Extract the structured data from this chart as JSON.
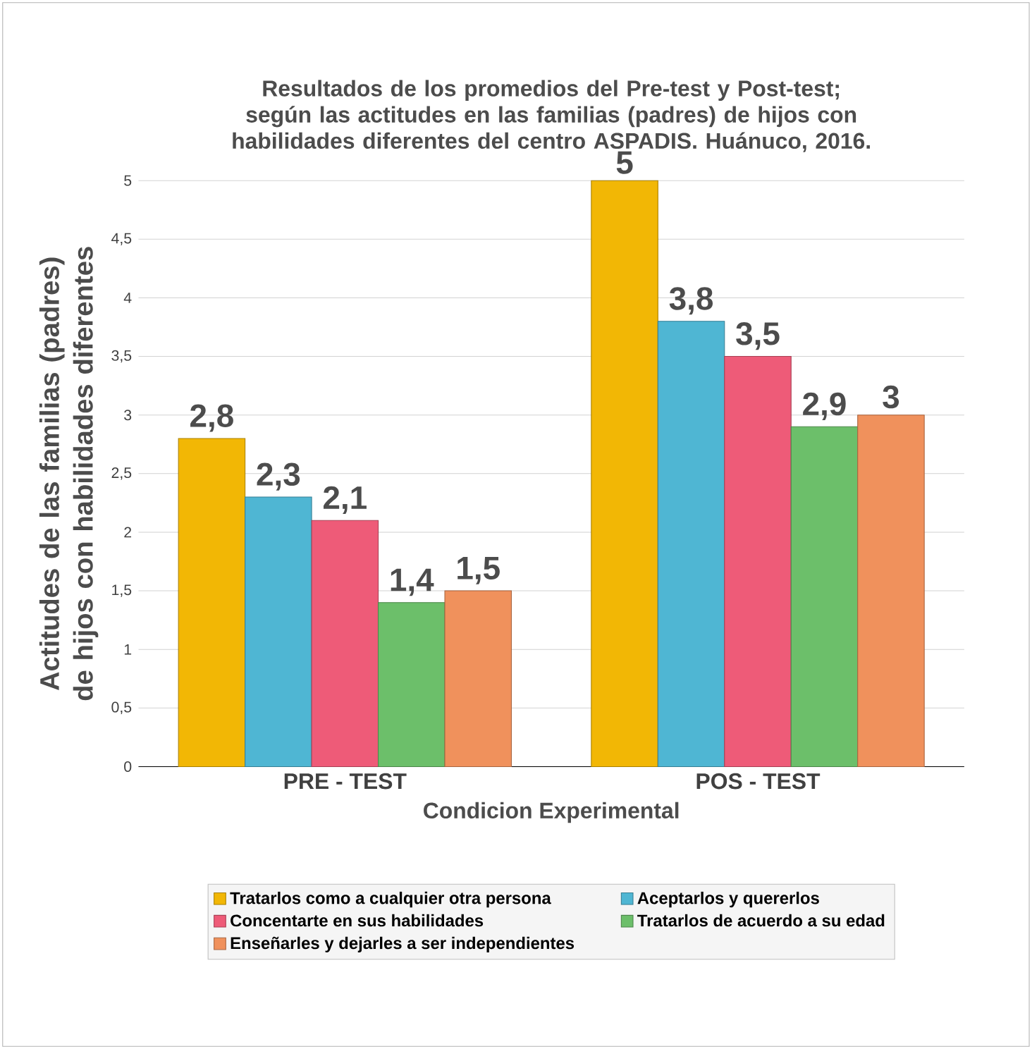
{
  "chart_data": {
    "type": "bar",
    "title": "Resultados de los promedios del Pre-test y Post-test; según las actitudes en las familias (padres) de hijos con habilidades diferentes del centro ASPADIS. Huánuco, 2016.",
    "xlabel": "Condicion Experimental",
    "ylabel": "Actitudes de las familias  (padres) de hijos con habilidades diferentes",
    "categories": [
      "PRE - TEST",
      "POS - TEST"
    ],
    "series": [
      {
        "name": "Tratarlos como a cualquier otra persona",
        "color": "#f2b705",
        "values": [
          2.8,
          5
        ],
        "value_labels": [
          "2,8",
          "5"
        ]
      },
      {
        "name": "Aceptarlos y quererlos",
        "color": "#4fb6d3",
        "values": [
          2.3,
          3.8
        ],
        "value_labels": [
          "2,3",
          "3,8"
        ]
      },
      {
        "name": "Concentarte en sus habilidades",
        "color": "#ee5b78",
        "values": [
          2.1,
          3.5
        ],
        "value_labels": [
          "2,1",
          "3,5"
        ]
      },
      {
        "name": "Tratarlos de acuerdo a su edad",
        "color": "#6cbf6a",
        "values": [
          1.4,
          2.9
        ],
        "value_labels": [
          "1,4",
          "2,9"
        ]
      },
      {
        "name": "Enseñarles y dejarles a ser independientes",
        "color": "#f0915c",
        "values": [
          1.5,
          3
        ],
        "value_labels": [
          "1,5",
          "3"
        ]
      }
    ],
    "ylim": [
      0,
      5
    ],
    "yticks": [
      0,
      {
        "value": 0.5,
        "label": "0,5"
      },
      1,
      {
        "value": 1.5,
        "label": "1,5"
      },
      2,
      {
        "value": 2.5,
        "label": "2,5"
      },
      3,
      {
        "value": 3.5,
        "label": "3,5"
      },
      4,
      {
        "value": 4.5,
        "label": "4,5"
      },
      5
    ],
    "grid": "y",
    "legend": "bottom"
  }
}
